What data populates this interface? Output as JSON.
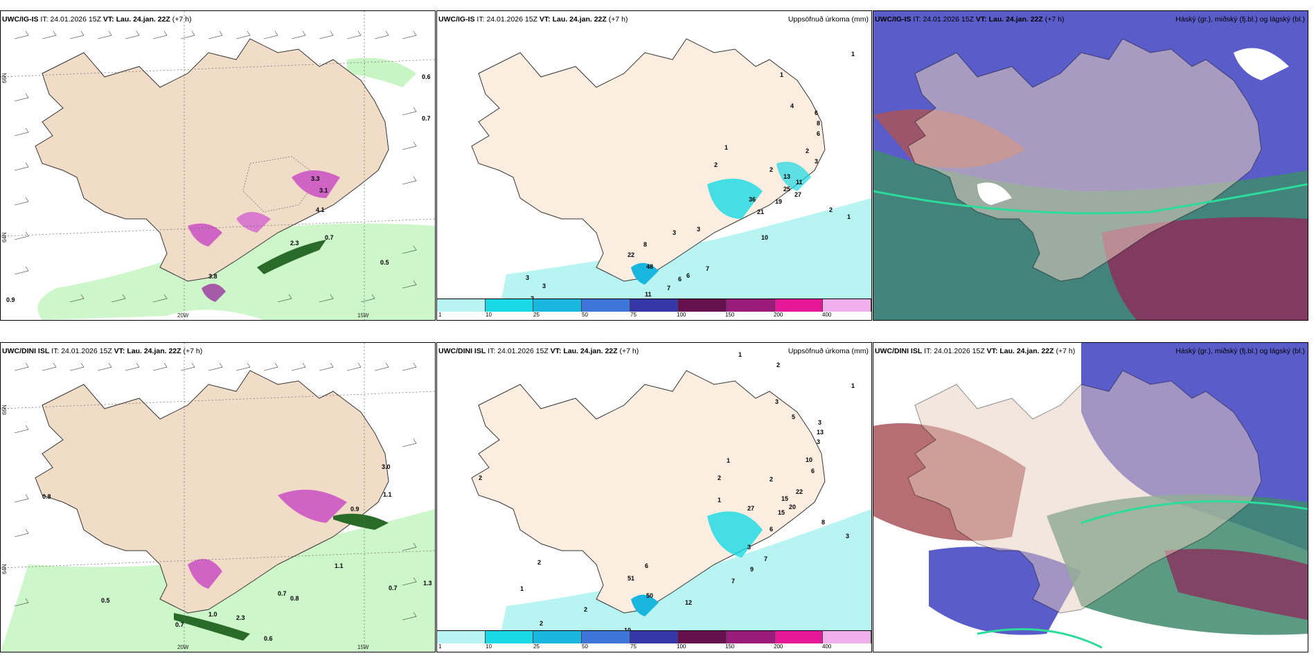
{
  "panels": [
    {
      "model": "UWC/IG-IS",
      "it_label": "IT:",
      "it": "24.01.2026 15Z",
      "vt_label": "VT:",
      "vt": "Lau. 24.jan. 22Z",
      "lead": "(+7 h)",
      "right": ""
    },
    {
      "model": "UWC/IG-IS",
      "it_label": "IT:",
      "it": "24.01.2026 15Z",
      "vt_label": "VT:",
      "vt": "Lau. 24.jan. 22Z",
      "lead": "(+7 h)",
      "right": "Uppsöfnuð úrkoma (mm)"
    },
    {
      "model": "UWC/IG-IS",
      "it_label": "IT:",
      "it": "24.01.2026 15Z",
      "vt_label": "VT:",
      "vt": "Lau. 24.jan. 22Z",
      "lead": "(+7 h)",
      "right": "Háský (gr.), miðský (fj.bl.) og lágský (bl.)"
    },
    {
      "model": "UWC/DINI ISL",
      "it_label": "IT:",
      "it": "24.01.2026 15Z",
      "vt_label": "VT:",
      "vt": "Lau. 24.jan. 22Z",
      "lead": "(+7 h)",
      "right": ""
    },
    {
      "model": "UWC/DINI ISL",
      "it_label": "IT:",
      "it": "24.01.2026 15Z",
      "vt_label": "VT:",
      "vt": "Lau. 24.jan. 22Z",
      "lead": "(+7 h)",
      "right": "Uppsöfnuð úrkoma (mm)"
    },
    {
      "model": "UWC/DINI ISL",
      "it_label": "IT:",
      "it": "24.01.2026 15Z",
      "vt_label": "VT:",
      "vt": "Lau. 24.jan. 22Z",
      "lead": "(+7 h)",
      "right": "Háský (gr.), miðský (fj.bl.) og lágský (bl.)"
    }
  ],
  "axes": {
    "lon_20": "20W",
    "lon_15": "15W",
    "lat_66": "66N",
    "lat_64": "64N"
  },
  "legend": {
    "ticks": [
      "1",
      "10",
      "25",
      "50",
      "75",
      "100",
      "150",
      "200",
      "400"
    ],
    "colors": [
      "#b8f5f2",
      "#19d9e6",
      "#19b6e0",
      "#3f74d9",
      "#3636a8",
      "#66104f",
      "#9a1b7a",
      "#e6189a",
      "#f0b0ec"
    ]
  },
  "wind_labels_top": [
    "0.6",
    "0.7",
    "0.7",
    "0.5",
    "0.9",
    "3.1",
    "3.3",
    "4.1",
    "2.3",
    "3.8"
  ],
  "wind_labels_bottom": [
    "0.8",
    "0.5",
    "0.7",
    "1.0",
    "2.3",
    "0.6",
    "0.7",
    "0.8",
    "1.1",
    "1.3",
    "0.7",
    "3.0",
    "1.1",
    "0.9"
  ],
  "precip_labels_top": [
    "1",
    "1",
    "4",
    "6",
    "8",
    "6",
    "2",
    "3",
    "1",
    "2",
    "2",
    "13",
    "11",
    "25",
    "27",
    "19",
    "36",
    "21",
    "2",
    "1",
    "3",
    "3",
    "10",
    "8",
    "22",
    "48",
    "7",
    "6",
    "6",
    "7",
    "11",
    "3",
    "3",
    "2"
  ],
  "precip_labels_bottom": [
    "1",
    "1",
    "2",
    "3",
    "5",
    "3",
    "13",
    "3",
    "10",
    "6",
    "2",
    "1",
    "1",
    "2",
    "2",
    "22",
    "15",
    "15",
    "20",
    "27",
    "6",
    "8",
    "3",
    "3",
    "7",
    "9",
    "7",
    "12",
    "6",
    "51",
    "50",
    "2",
    "1",
    "2",
    "2",
    "10"
  ]
}
